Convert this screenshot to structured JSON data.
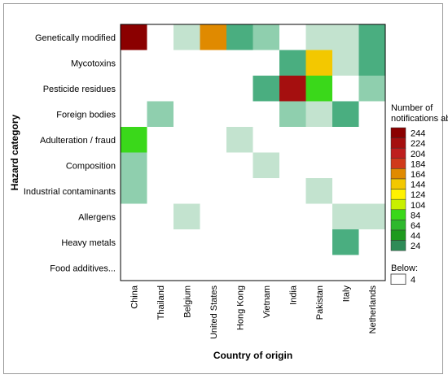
{
  "chart_data": {
    "type": "heatmap",
    "xlabel": "Country of origin",
    "ylabel": "Hazard category",
    "x_categories": [
      "China",
      "Thailand",
      "Belgium",
      "United States",
      "Hong Kong",
      "Vietnam",
      "India",
      "Pakistan",
      "Italy",
      "Netherlands"
    ],
    "y_categories": [
      "Genetically modified",
      "Mycotoxins",
      "Pesticide residues",
      "Foreign bodies",
      "Adulteration / fraud",
      "Composition",
      "Industrial contaminants",
      "Allergens",
      "Heavy metals",
      "Food additives..."
    ],
    "values": [
      [
        244,
        4,
        10,
        164,
        40,
        20,
        4,
        10,
        10,
        40
      ],
      [
        4,
        4,
        4,
        4,
        4,
        4,
        40,
        144,
        10,
        24
      ],
      [
        4,
        4,
        4,
        4,
        4,
        24,
        224,
        90,
        4,
        20
      ],
      [
        4,
        20,
        4,
        4,
        4,
        4,
        20,
        10,
        40,
        4
      ],
      [
        84,
        4,
        4,
        4,
        10,
        4,
        4,
        4,
        4,
        4
      ],
      [
        20,
        4,
        4,
        4,
        4,
        10,
        4,
        4,
        4,
        4
      ],
      [
        20,
        4,
        4,
        4,
        4,
        4,
        4,
        10,
        4,
        4
      ],
      [
        4,
        4,
        10,
        4,
        4,
        4,
        4,
        4,
        10,
        10
      ],
      [
        4,
        4,
        4,
        4,
        4,
        4,
        4,
        4,
        24,
        4
      ],
      [
        4,
        4,
        4,
        4,
        4,
        4,
        4,
        4,
        4,
        4
      ]
    ],
    "legend": {
      "title": "Number of notifications above:",
      "levels": [
        {
          "value": 244,
          "color": "#8b0000"
        },
        {
          "value": 224,
          "color": "#a50f0f"
        },
        {
          "value": 204,
          "color": "#be1e1e"
        },
        {
          "value": 184,
          "color": "#d03a1a"
        },
        {
          "value": 164,
          "color": "#e08a00"
        },
        {
          "value": 144,
          "color": "#f3c800"
        },
        {
          "value": 124,
          "color": "#fff200"
        },
        {
          "value": 104,
          "color": "#c8f000"
        },
        {
          "value": 84,
          "color": "#3ad81a"
        },
        {
          "value": 64,
          "color": "#2eb82e"
        },
        {
          "value": 44,
          "color": "#1e9a1e"
        },
        {
          "value": 24,
          "color": "#2e8b57"
        }
      ],
      "below_label": "Below:",
      "below_value": 4,
      "below_color": "#ffffff",
      "low_shades": [
        {
          "min": 4,
          "color": "#ffffff"
        },
        {
          "min": 10,
          "color": "#c3e3cf"
        },
        {
          "min": 20,
          "color": "#8fcfae"
        },
        {
          "min": 24,
          "color": "#4aae80"
        }
      ]
    }
  }
}
